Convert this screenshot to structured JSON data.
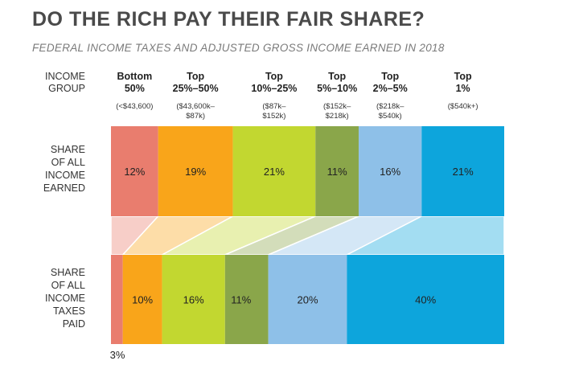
{
  "title": "DO THE RICH PAY THEIR FAIR SHARE?",
  "subtitle": "FEDERAL INCOME TAXES AND ADJUSTED GROSS INCOME EARNED IN 2018",
  "colors": {
    "bottom50": "#e97d6e",
    "top25_50": "#f9a51a",
    "top10_25": "#c2d730",
    "top5_10": "#8aa64a",
    "top2_5": "#8ec0e8",
    "top1": "#0da5dc"
  },
  "chart_data": {
    "type": "bar",
    "stacked": true,
    "orientation": "horizontal",
    "header_label": [
      "INCOME",
      "GROUP"
    ],
    "groups": [
      {
        "name": [
          "Bottom",
          "50%"
        ],
        "range": [
          "(<$43,600)"
        ],
        "color_key": "bottom50"
      },
      {
        "name": [
          "Top",
          "25%–50%"
        ],
        "range": [
          "($43,600k–",
          "$87k)"
        ],
        "color_key": "top25_50"
      },
      {
        "name": [
          "Top",
          "10%–25%"
        ],
        "range": [
          "($87k–",
          "$152k)"
        ],
        "color_key": "top10_25"
      },
      {
        "name": [
          "Top",
          "5%–10%"
        ],
        "range": [
          "($152k–",
          "$218k)"
        ],
        "color_key": "top5_10"
      },
      {
        "name": [
          "Top",
          "2%–5%"
        ],
        "range": [
          "($218k–",
          "$540k)"
        ],
        "color_key": "top2_5"
      },
      {
        "name": [
          "Top",
          "1%"
        ],
        "range": [
          "($540k+)"
        ],
        "color_key": "top1"
      }
    ],
    "series": [
      {
        "name": [
          "SHARE",
          "OF ALL",
          "INCOME",
          "EARNED"
        ],
        "values": [
          12,
          19,
          21,
          11,
          16,
          21
        ],
        "labels": [
          "12%",
          "19%",
          "21%",
          "11%",
          "16%",
          "21%"
        ]
      },
      {
        "name": [
          "SHARE",
          "OF ALL",
          "INCOME",
          "TAXES",
          "PAID"
        ],
        "values": [
          3,
          10,
          16,
          11,
          20,
          40
        ],
        "labels": [
          "3%",
          "10%",
          "16%",
          "11%",
          "20%",
          "40%"
        ]
      }
    ]
  }
}
